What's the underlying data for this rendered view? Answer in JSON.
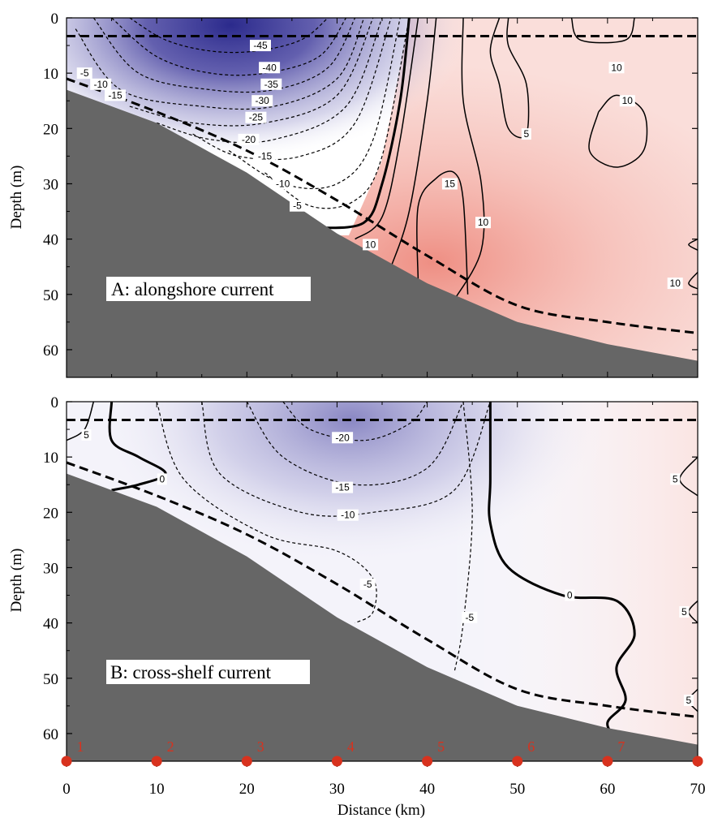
{
  "colors": {
    "negative": "#2b2a8c",
    "positive": "#ec7f72",
    "bottom": "#666666",
    "station": "#d8321e",
    "contour": "#000000"
  },
  "chart_data": [
    {
      "type": "heatmap",
      "panel_label": "A: alongshore current",
      "xlabel": "",
      "ylabel": "Depth (m)",
      "xlim": [
        0,
        70
      ],
      "ylim": [
        65,
        0
      ],
      "yticks": [
        0,
        10,
        20,
        30,
        40,
        50,
        60
      ],
      "y_inverted": true,
      "upper_dashed_line_depth": 3.3,
      "lower_dashed_line": {
        "x": [
          0,
          10,
          20,
          30,
          40,
          50,
          60,
          70
        ],
        "y": [
          11,
          17,
          24,
          33,
          43,
          52,
          55,
          57
        ]
      },
      "bathymetry": {
        "x": [
          0,
          10,
          20,
          30,
          40,
          50,
          60,
          70
        ],
        "depth": [
          13,
          19,
          28,
          39,
          48,
          55,
          59,
          62
        ]
      },
      "core_negative": {
        "x": 18,
        "depth": 2,
        "value": -45
      },
      "core_positive": {
        "x": 41,
        "depth": 43,
        "value": 15
      },
      "contour_labels": [
        {
          "text": "-45",
          "x": 21.5,
          "y": 5
        },
        {
          "text": "-40",
          "x": 22.5,
          "y": 9
        },
        {
          "text": "-35",
          "x": 22.7,
          "y": 12
        },
        {
          "text": "-30",
          "x": 21.7,
          "y": 15
        },
        {
          "text": "-25",
          "x": 21,
          "y": 18
        },
        {
          "text": "-20",
          "x": 20.2,
          "y": 22
        },
        {
          "text": "-15",
          "x": 22,
          "y": 25
        },
        {
          "text": "-10",
          "x": 24,
          "y": 30
        },
        {
          "text": "-5",
          "x": 25.6,
          "y": 34
        },
        {
          "text": "-5",
          "x": 2.0,
          "y": 10
        },
        {
          "text": "-10",
          "x": 3.8,
          "y": 12
        },
        {
          "text": "-15",
          "x": 5.4,
          "y": 14
        },
        {
          "text": "15",
          "x": 42.5,
          "y": 30
        },
        {
          "text": "10",
          "x": 46.2,
          "y": 37
        },
        {
          "text": "10",
          "x": 33.7,
          "y": 41
        },
        {
          "text": "5",
          "x": 51,
          "y": 21
        },
        {
          "text": "10",
          "x": 61,
          "y": 9
        },
        {
          "text": "10",
          "x": 62.2,
          "y": 15
        },
        {
          "text": "10",
          "x": 67.5,
          "y": 48
        }
      ]
    },
    {
      "type": "heatmap",
      "panel_label": "B: cross-shelf current",
      "xlabel": "Distance (km)",
      "ylabel": "Depth (m)",
      "xlim": [
        0,
        70
      ],
      "ylim": [
        65,
        0
      ],
      "xticks": [
        0,
        10,
        20,
        30,
        40,
        50,
        60,
        70
      ],
      "yticks": [
        0,
        10,
        20,
        30,
        40,
        50,
        60
      ],
      "y_inverted": true,
      "upper_dashed_line_depth": 3.3,
      "lower_dashed_line": {
        "x": [
          0,
          10,
          20,
          30,
          40,
          50,
          60,
          70
        ],
        "y": [
          11,
          17,
          24,
          33,
          43,
          52,
          55,
          57
        ]
      },
      "bathymetry": {
        "x": [
          0,
          10,
          20,
          30,
          40,
          50,
          60,
          70
        ],
        "depth": [
          13,
          19,
          28,
          39,
          48,
          55,
          59,
          62
        ]
      },
      "core_negative": {
        "x": 32,
        "depth": 6,
        "value": -20
      },
      "contour_labels": [
        {
          "text": "5",
          "x": 2.2,
          "y": 6
        },
        {
          "text": "0",
          "x": 10.6,
          "y": 14
        },
        {
          "text": "-20",
          "x": 30.6,
          "y": 6.5
        },
        {
          "text": "-15",
          "x": 30.6,
          "y": 15.5
        },
        {
          "text": "-10",
          "x": 31.2,
          "y": 20.5
        },
        {
          "text": "-5",
          "x": 33.4,
          "y": 33
        },
        {
          "text": "-5",
          "x": 44.7,
          "y": 39
        },
        {
          "text": "0",
          "x": 55.8,
          "y": 35
        },
        {
          "text": "5",
          "x": 67.5,
          "y": 14
        },
        {
          "text": "5",
          "x": 68.5,
          "y": 38
        },
        {
          "text": "5",
          "x": 69,
          "y": 54
        }
      ],
      "stations": [
        {
          "label": "1",
          "x": 0
        },
        {
          "label": "2",
          "x": 10
        },
        {
          "label": "3",
          "x": 20
        },
        {
          "label": "4",
          "x": 30
        },
        {
          "label": "5",
          "x": 40
        },
        {
          "label": "6",
          "x": 50
        },
        {
          "label": "7",
          "x": 60
        },
        {
          "label": "8",
          "x": 70
        }
      ]
    }
  ]
}
